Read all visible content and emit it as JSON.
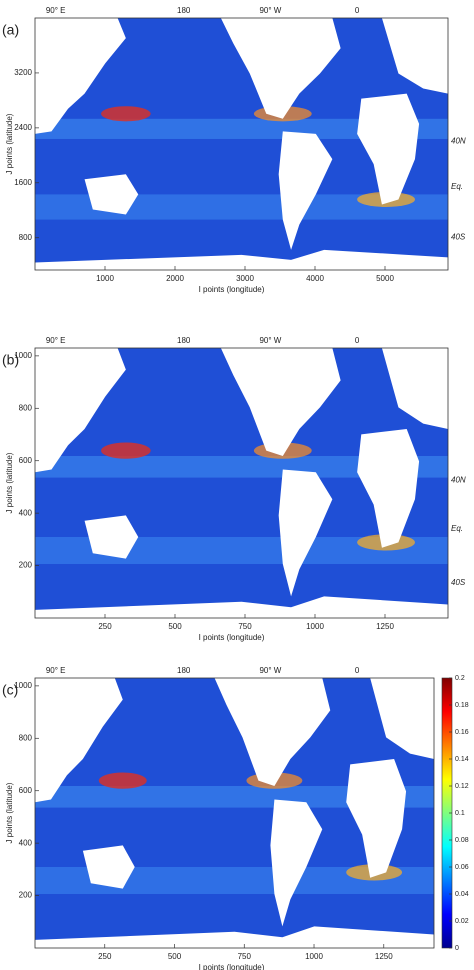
{
  "panels": [
    {
      "label": "(a)",
      "top_labels": [
        "90° E",
        "180",
        "90° W",
        "0"
      ],
      "side_labels": [
        "40N",
        "Eq.",
        "40S"
      ],
      "x_title": "I points (longitude)",
      "y_title": "J points (latitude)",
      "xlim": [
        0,
        5900
      ],
      "ylim": [
        330,
        4000
      ],
      "xticks": [
        1000,
        2000,
        3000,
        4000,
        5000
      ],
      "yticks": [
        800,
        1600,
        2400,
        3200
      ]
    },
    {
      "label": "(b)",
      "top_labels": [
        "90° E",
        "180",
        "90° W",
        "0"
      ],
      "side_labels": [
        "40N",
        "Eq.",
        "40S"
      ],
      "x_title": "I points (longitude)",
      "y_title": "J points (latitude)",
      "xlim": [
        0,
        1475
      ],
      "ylim": [
        0,
        1030
      ],
      "xticks": [
        250,
        500,
        750,
        1000,
        1250
      ],
      "yticks": [
        200,
        400,
        600,
        800,
        1000
      ]
    },
    {
      "label": "(c)",
      "top_labels": [
        "90° E",
        "180",
        "90° W",
        "0"
      ],
      "x_title": "I points (longitude)",
      "y_title": "J points (latitude)",
      "xlim": [
        0,
        1430
      ],
      "ylim": [
        0,
        1030
      ],
      "xticks": [
        250,
        500,
        750,
        1000,
        1250
      ],
      "yticks": [
        200,
        400,
        600,
        800,
        1000
      ]
    }
  ],
  "colorbar": {
    "lim": [
      0,
      0.2
    ],
    "ticks": [
      0,
      0.02,
      0.04,
      0.06,
      0.08,
      0.1,
      0.12,
      0.14,
      0.16,
      0.18,
      0.2
    ]
  }
}
